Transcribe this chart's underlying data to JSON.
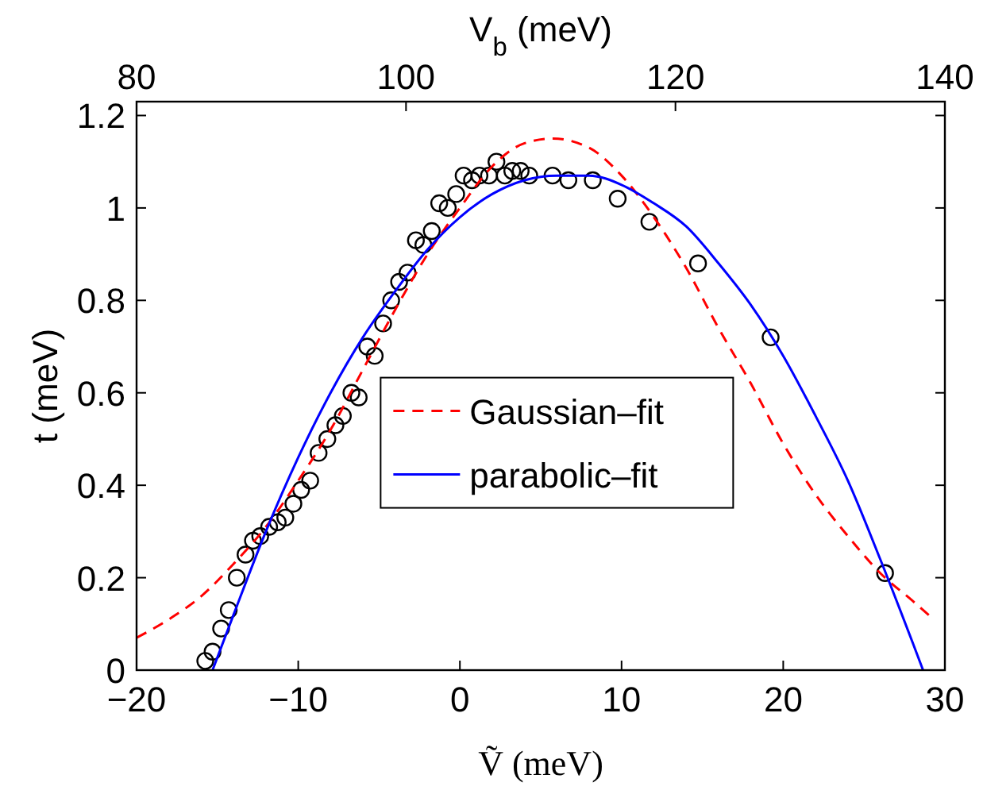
{
  "chart_data": {
    "type": "scatter",
    "xlabel": "Ṽ (meV)",
    "ylabel": "t (meV)",
    "x2label": "V$_{b}$ (meV)",
    "xlim": [
      -20,
      30
    ],
    "xticks": [
      -20,
      -10,
      0,
      10,
      20,
      30
    ],
    "x2lim": [
      80,
      140
    ],
    "x2ticks": [
      80,
      100,
      120,
      140
    ],
    "ylim": [
      0,
      1.23
    ],
    "yticks": [
      0,
      0.2,
      0.4,
      0.6,
      0.8,
      1,
      1.2
    ],
    "grid": false,
    "legend": "center",
    "series": [
      {
        "color": "#000000",
        "marker": "circle",
        "x": [
          -15.75,
          -15.3,
          -14.77,
          -14.3,
          -13.8,
          -13.26,
          -12.8,
          -12.35,
          -11.8,
          -11.27,
          -10.8,
          -10.3,
          -9.82,
          -9.26,
          -8.74,
          -8.2,
          -7.7,
          -7.24,
          -6.71,
          -6.26,
          -5.73,
          -5.27,
          -4.75,
          -4.25,
          -3.76,
          -3.24,
          -2.72,
          -2.26,
          -1.74,
          -1.28,
          -0.75,
          -0.23,
          0.23,
          0.75,
          1.21,
          1.8,
          2.26,
          2.78,
          3.24,
          3.76,
          4.29,
          5.73,
          6.71,
          8.22,
          9.76,
          11.72,
          14.73,
          19.22,
          26.3
        ],
        "values": [
          0.02,
          0.04,
          0.09,
          0.13,
          0.2,
          0.25,
          0.28,
          0.29,
          0.31,
          0.32,
          0.33,
          0.36,
          0.39,
          0.41,
          0.47,
          0.5,
          0.53,
          0.55,
          0.6,
          0.59,
          0.7,
          0.68,
          0.75,
          0.8,
          0.84,
          0.86,
          0.93,
          0.92,
          0.95,
          1.01,
          1.0,
          1.03,
          1.07,
          1.06,
          1.07,
          1.07,
          1.1,
          1.07,
          1.08,
          1.08,
          1.07,
          1.07,
          1.06,
          1.06,
          1.02,
          0.97,
          0.88,
          0.72,
          0.21
        ]
      },
      {
        "type": "line",
        "name": "Gaussian–fit",
        "color": "#ff0000",
        "line_style": "dashed",
        "x": [
          -20,
          -18,
          -16,
          -14,
          -12,
          -10,
          -8,
          -6,
          -4,
          -2,
          0,
          2,
          4,
          5.75,
          8,
          10,
          12,
          14,
          16,
          18,
          20,
          22,
          24,
          26,
          28,
          29.3
        ],
        "values": [
          0.07,
          0.11,
          0.16,
          0.23,
          0.31,
          0.41,
          0.52,
          0.65,
          0.78,
          0.9,
          1.0,
          1.09,
          1.14,
          1.15,
          1.13,
          1.07,
          0.98,
          0.87,
          0.74,
          0.62,
          0.49,
          0.38,
          0.29,
          0.21,
          0.15,
          0.11
        ]
      },
      {
        "type": "line",
        "name": "parabolic–fit",
        "color": "#0000ff",
        "line_style": "solid",
        "x": [
          -15.3,
          -14,
          -12,
          -10,
          -8,
          -6,
          -4,
          -2,
          0,
          2,
          4,
          6,
          8,
          10,
          12,
          14,
          16,
          18,
          20,
          22,
          24,
          26,
          28,
          28.65
        ],
        "values": [
          0,
          0.12,
          0.3,
          0.46,
          0.6,
          0.72,
          0.82,
          0.91,
          0.98,
          1.03,
          1.06,
          1.07,
          1.07,
          1.05,
          1.01,
          0.96,
          0.88,
          0.79,
          0.68,
          0.55,
          0.41,
          0.24,
          0.06,
          0
        ]
      }
    ]
  }
}
